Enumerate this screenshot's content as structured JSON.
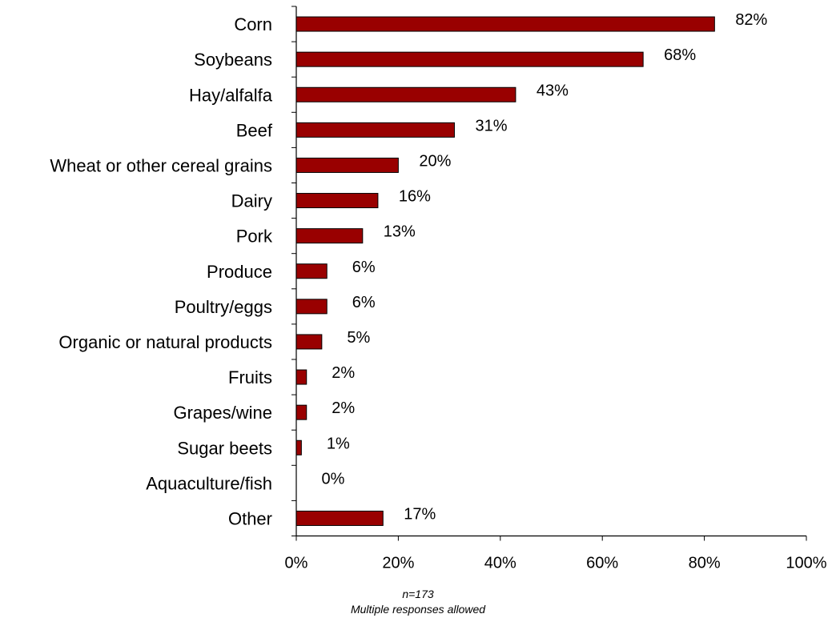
{
  "chart_data": {
    "type": "bar",
    "orientation": "horizontal",
    "categories": [
      "Corn",
      "Soybeans",
      "Hay/alfalfa",
      "Beef",
      "Wheat or other cereal grains",
      "Dairy",
      "Pork",
      "Produce",
      "Poultry/eggs",
      "Organic or natural products",
      "Fruits",
      "Grapes/wine",
      "Sugar beets",
      "Aquaculture/fish",
      "Other"
    ],
    "values": [
      82,
      68,
      43,
      31,
      20,
      16,
      13,
      6,
      6,
      5,
      2,
      2,
      1,
      0,
      17
    ],
    "data_labels": [
      "82%",
      "68%",
      "43%",
      "31%",
      "20%",
      "16%",
      "13%",
      "6%",
      "6%",
      "5%",
      "2%",
      "2%",
      "1%",
      "0%",
      "17%"
    ],
    "xlim": [
      0,
      100
    ],
    "x_ticks": [
      0,
      20,
      40,
      60,
      80,
      100
    ],
    "x_tick_labels": [
      "0%",
      "20%",
      "40%",
      "60%",
      "80%",
      "100%"
    ],
    "bar_color": "#990000",
    "grid": false,
    "legend": "none",
    "annotations": [
      "n=173",
      "Multiple responses allowed"
    ]
  }
}
